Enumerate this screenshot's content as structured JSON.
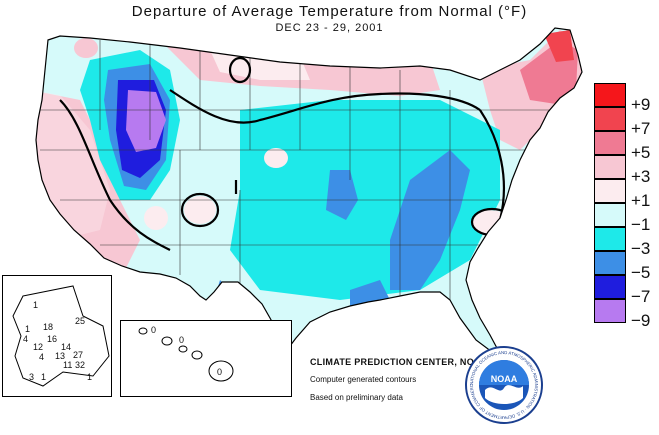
{
  "title": "Departure of Average Temperature from Normal (°F)",
  "subtitle": "DEC 23 - 29, 2001",
  "legend": [
    {
      "label": "+9",
      "color": "#f5161b"
    },
    {
      "label": "+7",
      "color": "#f1444f"
    },
    {
      "label": "+5",
      "color": "#ef7a93"
    },
    {
      "label": "+3",
      "color": "#f7c7d3"
    },
    {
      "label": "+1",
      "color": "#fcecef"
    },
    {
      "label": "−1",
      "color": "#d6fafa"
    },
    {
      "label": "−3",
      "color": "#1ee9e9"
    },
    {
      "label": "−5",
      "color": "#3d8fe6"
    },
    {
      "label": "−7",
      "color": "#1f1dde"
    },
    {
      "label": "−9",
      "color": "#b77af0"
    }
  ],
  "credits": {
    "center": "CLIMATE PREDICTION CENTER, NOAA",
    "line1": "Computer generated contours",
    "line2": "Based on preliminary data"
  },
  "noaa_logo": {
    "acronym": "NOAA",
    "ring_text": "NATIONAL OCEANIC AND ATMOSPHERIC ADMINISTRATION · U.S. DEPARTMENT OF COMMERCE"
  },
  "alaska_values": [
    "25",
    "18",
    "16",
    "14",
    "12",
    "13",
    "27",
    "11",
    "32",
    "1",
    "4",
    "4",
    "1",
    "3",
    "1",
    "1"
  ],
  "hawaii_values": [
    "0",
    "0",
    "0"
  ]
}
